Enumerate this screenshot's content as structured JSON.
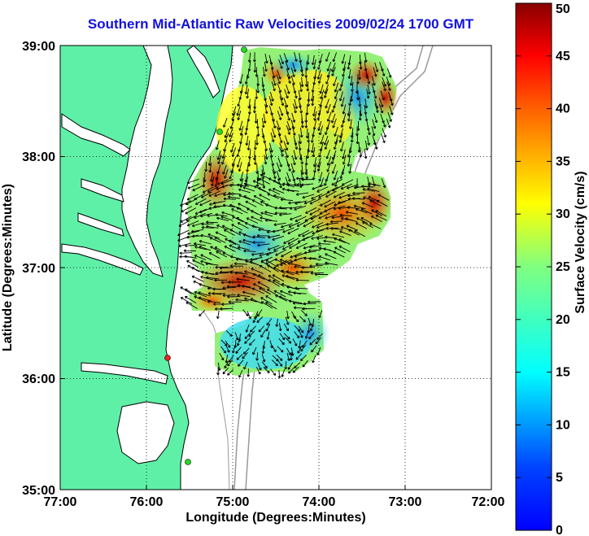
{
  "title": "Southern Mid-Atlantic Raw Velocities 2009/02/24 1700 GMT",
  "map": {
    "x_axis_label": "Longitude (Degrees:Minutes)",
    "y_axis_label": "Latitude (Degrees:Minutes)",
    "x_ticks": [
      "77:00",
      "76:00",
      "75:00",
      "74:00",
      "73:00",
      "72:00"
    ],
    "y_ticks": [
      "39:00",
      "38:00",
      "37:00",
      "36:00",
      "35:00"
    ],
    "lon_range": [
      -77,
      -72
    ],
    "lat_range": [
      35,
      39
    ],
    "grid": "dotted",
    "land_color": "#5ff0a8",
    "water_color": "#ffffff",
    "station_colors": [
      "#22dd22",
      "#22dd22",
      "#ee2222",
      "#22dd22"
    ]
  },
  "colorbar": {
    "label": "Surface Velocity (cm/s)",
    "ticks": [
      "50",
      "45",
      "40",
      "35",
      "30",
      "25",
      "20",
      "15",
      "10",
      "5",
      "0"
    ],
    "range": [
      0,
      50
    ],
    "colormap": "jet"
  }
}
